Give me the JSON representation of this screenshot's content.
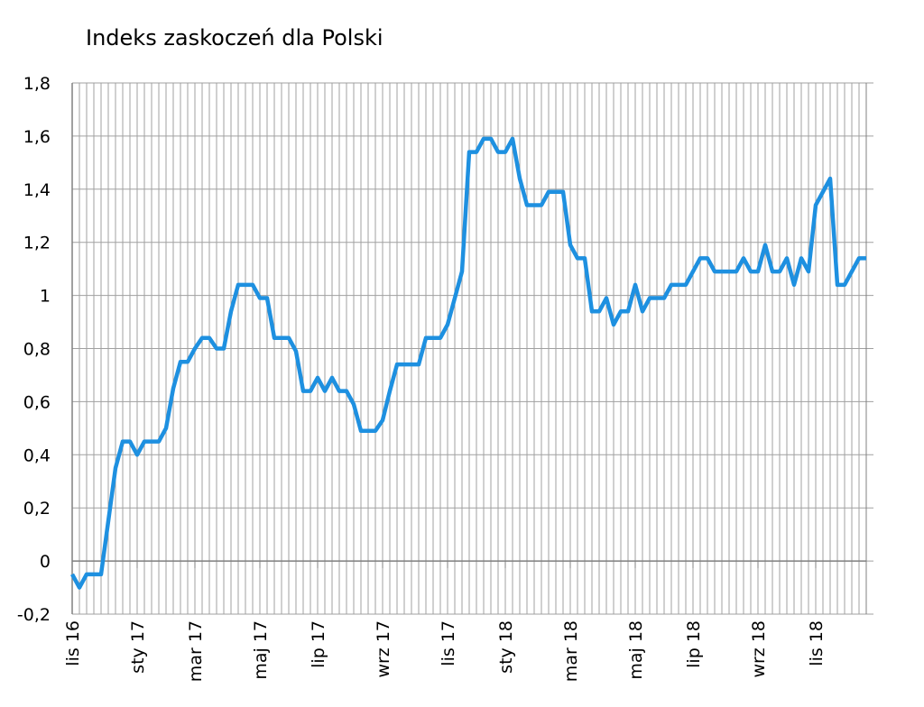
{
  "chart_data": {
    "type": "line",
    "title": "Indeks zaskoczeń dla Polski",
    "categories": [
      "lis 16",
      null,
      null,
      null,
      null,
      null,
      null,
      null,
      null,
      "sty 17",
      null,
      null,
      null,
      null,
      null,
      null,
      null,
      "mar 17",
      null,
      null,
      null,
      null,
      null,
      null,
      null,
      null,
      "maj 17",
      null,
      null,
      null,
      null,
      null,
      null,
      null,
      "lip 17",
      null,
      null,
      null,
      null,
      null,
      null,
      null,
      null,
      "wrz 17",
      null,
      null,
      null,
      null,
      null,
      null,
      null,
      null,
      "lis 17",
      null,
      null,
      null,
      null,
      null,
      null,
      null,
      "sty 18",
      null,
      null,
      null,
      null,
      null,
      null,
      null,
      null,
      "mar 18",
      null,
      null,
      null,
      null,
      null,
      null,
      null,
      null,
      "maj 18",
      null,
      null,
      null,
      null,
      null,
      null,
      null,
      "lip 18",
      null,
      null,
      null,
      null,
      null,
      null,
      null,
      null,
      "wrz 18",
      null,
      null,
      null,
      null,
      null,
      null,
      null,
      "lis 18",
      null,
      null,
      null,
      null,
      null,
      null,
      null
    ],
    "series": [
      {
        "name": "Indeks zaskoczeń",
        "color": "#1e90e0",
        "values": [
          -0.05,
          -0.1,
          -0.05,
          -0.05,
          -0.05,
          0.15,
          0.35,
          0.45,
          0.45,
          0.4,
          0.45,
          0.45,
          0.45,
          0.5,
          0.65,
          0.75,
          0.75,
          0.8,
          0.84,
          0.84,
          0.8,
          0.8,
          0.94,
          1.04,
          1.04,
          1.04,
          0.99,
          0.99,
          0.84,
          0.84,
          0.84,
          0.79,
          0.64,
          0.64,
          0.69,
          0.64,
          0.69,
          0.64,
          0.64,
          0.59,
          0.49,
          0.49,
          0.49,
          0.53,
          0.64,
          0.74,
          0.74,
          0.74,
          0.74,
          0.84,
          0.84,
          0.84,
          0.89,
          0.99,
          1.09,
          1.54,
          1.54,
          1.59,
          1.59,
          1.54,
          1.54,
          1.59,
          1.44,
          1.34,
          1.34,
          1.34,
          1.39,
          1.39,
          1.39,
          1.19,
          1.14,
          1.14,
          0.94,
          0.94,
          0.99,
          0.89,
          0.94,
          0.94,
          1.04,
          0.94,
          0.99,
          0.99,
          0.99,
          1.04,
          1.04,
          1.04,
          1.09,
          1.14,
          1.14,
          1.09,
          1.09,
          1.09,
          1.09,
          1.14,
          1.09,
          1.09,
          1.19,
          1.09,
          1.09,
          1.14,
          1.04,
          1.14,
          1.09,
          1.34,
          1.39,
          1.44,
          1.04,
          1.04,
          1.09,
          1.14,
          1.14
        ]
      }
    ],
    "ylim": [
      -0.2,
      1.8
    ],
    "yticks": [
      {
        "value": -0.2,
        "label": "-0,2"
      },
      0,
      {
        "value": 0.2,
        "label": "0,2"
      },
      {
        "value": 0.4,
        "label": "0,4"
      },
      {
        "value": 0.6,
        "label": "0,6"
      },
      {
        "value": 0.8,
        "label": "0,8"
      },
      1,
      {
        "value": 1.2,
        "label": "1,2"
      },
      {
        "value": 1.4,
        "label": "1,4"
      },
      {
        "value": 1.6,
        "label": "1,6"
      },
      {
        "value": 1.8,
        "label": "1,8"
      }
    ],
    "grid": true
  }
}
